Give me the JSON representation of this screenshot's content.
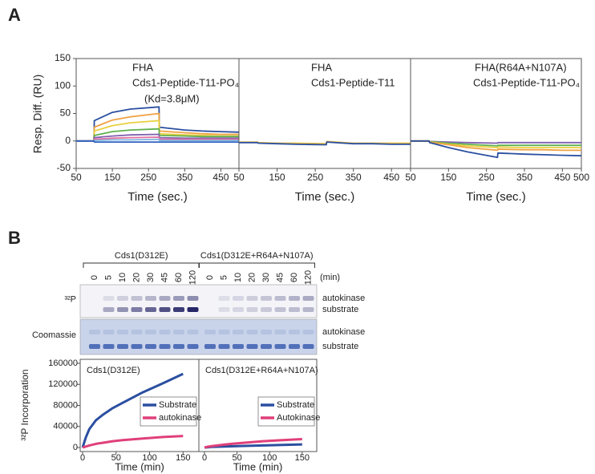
{
  "panel_labels": [
    "A",
    "B"
  ],
  "chart_data": [
    {
      "type": "line",
      "ylabel": "Resp. Diff. (RU)",
      "xlabel": "Time (sec.)",
      "annotations": [
        "FHA",
        "Cds1-Peptide-T11-PO₄",
        "(Kd=3.8μM)"
      ],
      "xlim": [
        50,
        500
      ],
      "xticks": [
        50,
        150,
        250,
        350,
        450
      ],
      "ylim": [
        -50,
        150
      ],
      "yticks": [
        -50,
        0,
        50,
        100,
        150
      ],
      "x": [
        50,
        99,
        100,
        150,
        200,
        279,
        280,
        350,
        400,
        450,
        500
      ],
      "series": [
        {
          "color": "#2b4fa0",
          "values": [
            0,
            0,
            37,
            52,
            58,
            62,
            25,
            20,
            18,
            17,
            16
          ]
        },
        {
          "color": "#f0a040",
          "values": [
            0,
            0,
            25,
            38,
            44,
            50,
            18,
            15,
            13,
            12,
            12
          ]
        },
        {
          "color": "#e8d040",
          "values": [
            0,
            0,
            18,
            28,
            33,
            37,
            13,
            11,
            10,
            9,
            9
          ]
        },
        {
          "color": "#60b050",
          "values": [
            0,
            0,
            10,
            17,
            20,
            22,
            10,
            9,
            8,
            8,
            8
          ]
        },
        {
          "color": "#8060b0",
          "values": [
            0,
            0,
            6,
            9,
            11,
            12,
            6,
            5,
            5,
            5,
            5
          ]
        },
        {
          "color": "#e070a0",
          "values": [
            0,
            0,
            3,
            5,
            6,
            7,
            3,
            3,
            3,
            3,
            3
          ]
        },
        {
          "color": "#80b8e0",
          "values": [
            0,
            0,
            1,
            2,
            2,
            3,
            1,
            1,
            1,
            1,
            1
          ]
        },
        {
          "color": "#3060c0",
          "values": [
            0,
            0,
            -2,
            -2,
            -2,
            -2,
            -2,
            -2,
            -2,
            -2,
            -2
          ]
        }
      ]
    },
    {
      "type": "line",
      "xlabel": "Time (sec.)",
      "annotations": [
        "FHA",
        "Cds1-Peptide-T11"
      ],
      "xlim": [
        50,
        500
      ],
      "xticks": [
        50,
        150,
        250,
        350,
        450
      ],
      "ylim": [
        -50,
        150
      ],
      "x": [
        50,
        99,
        100,
        150,
        200,
        279,
        280,
        350,
        400,
        450,
        500
      ],
      "series": [
        {
          "color": "#e8c040",
          "values": [
            -2,
            -2,
            -3,
            -4,
            -4,
            -5,
            -1,
            -4,
            -4,
            -4,
            -4
          ]
        },
        {
          "color": "#2b4fa0",
          "values": [
            -3,
            -3,
            -4,
            -5,
            -6,
            -7,
            -2,
            -5,
            -5,
            -6,
            -6
          ]
        }
      ]
    },
    {
      "type": "line",
      "xlabel": "Time (sec.)",
      "annotations": [
        "FHA(R64A+N107A)",
        "Cds1-Peptide-T11-PO₄"
      ],
      "xlim": [
        50,
        500
      ],
      "xticks": [
        50,
        150,
        250,
        350,
        450,
        500
      ],
      "ylim": [
        -50,
        150
      ],
      "x": [
        50,
        99,
        100,
        150,
        200,
        279,
        280,
        350,
        400,
        450,
        500
      ],
      "series": [
        {
          "color": "#8060b0",
          "values": [
            0,
            0,
            -1,
            -2,
            -3,
            -4,
            -3,
            -3,
            -3,
            -3,
            -3
          ]
        },
        {
          "color": "#60b050",
          "values": [
            0,
            0,
            -1,
            -4,
            -6,
            -9,
            -8,
            -8,
            -8,
            -8,
            -8
          ]
        },
        {
          "color": "#e8d040",
          "values": [
            0,
            0,
            -2,
            -6,
            -9,
            -12,
            -11,
            -12,
            -12,
            -12,
            -12
          ]
        },
        {
          "color": "#f0a040",
          "values": [
            0,
            0,
            -2,
            -7,
            -12,
            -17,
            -15,
            -16,
            -16,
            -17,
            -17
          ]
        },
        {
          "color": "#2b4fa0",
          "values": [
            0,
            0,
            -3,
            -12,
            -20,
            -30,
            -22,
            -24,
            -25,
            -26,
            -27
          ]
        }
      ]
    },
    {
      "type": "line",
      "title": "Cds1(D312E)",
      "ylabel": "³²P Incorporation",
      "xlabel": "Time (min)",
      "xlim": [
        0,
        170
      ],
      "xticks": [
        0,
        50,
        100,
        150
      ],
      "ylim": [
        0,
        160000
      ],
      "yticks": [
        0,
        40000,
        80000,
        120000,
        160000
      ],
      "legend": "right",
      "x": [
        0,
        5,
        10,
        20,
        30,
        45,
        60,
        90,
        120,
        150
      ],
      "series": [
        {
          "name": "Substrate",
          "color": "#2b4fa0",
          "values": [
            0,
            20000,
            35000,
            52000,
            62000,
            75000,
            85000,
            105000,
            122000,
            140000
          ]
        },
        {
          "name": "autokinase",
          "color": "#e0407a",
          "values": [
            0,
            2000,
            4000,
            7000,
            9000,
            12000,
            14000,
            17000,
            20000,
            22000
          ]
        }
      ]
    },
    {
      "type": "line",
      "title": "Cds1(D312E+R64A+N107A)",
      "xlabel": "Time (min)",
      "xlim": [
        0,
        170
      ],
      "xticks": [
        0,
        50,
        100,
        150
      ],
      "ylim": [
        0,
        160000
      ],
      "legend": "right",
      "x": [
        0,
        5,
        10,
        20,
        30,
        45,
        60,
        90,
        120,
        150
      ],
      "series": [
        {
          "name": "Substrate",
          "color": "#2b4fa0",
          "values": [
            0,
            500,
            1000,
            1500,
            2000,
            2500,
            3000,
            4000,
            5000,
            6000
          ]
        },
        {
          "name": "Autokinase",
          "color": "#e0407a",
          "values": [
            0,
            1500,
            2500,
            4000,
            5500,
            7500,
            9000,
            12000,
            14000,
            16000
          ]
        }
      ]
    }
  ],
  "gel": {
    "groups": [
      {
        "label": "Cds1(D312E)",
        "lanes": [
          "0",
          "5",
          "10",
          "20",
          "30",
          "45",
          "60",
          "120"
        ]
      },
      {
        "label": "Cds1(D312E+R64A+N107A)",
        "lanes": [
          "0",
          "5",
          "10",
          "20",
          "30",
          "45",
          "60",
          "120"
        ]
      }
    ],
    "unit": "(min)",
    "rows": [
      {
        "label": "³²P",
        "bands": [
          "autokinase",
          "substrate"
        ]
      },
      {
        "label": "Coomassie",
        "bands": [
          "autokinase",
          "substrate"
        ]
      }
    ]
  }
}
